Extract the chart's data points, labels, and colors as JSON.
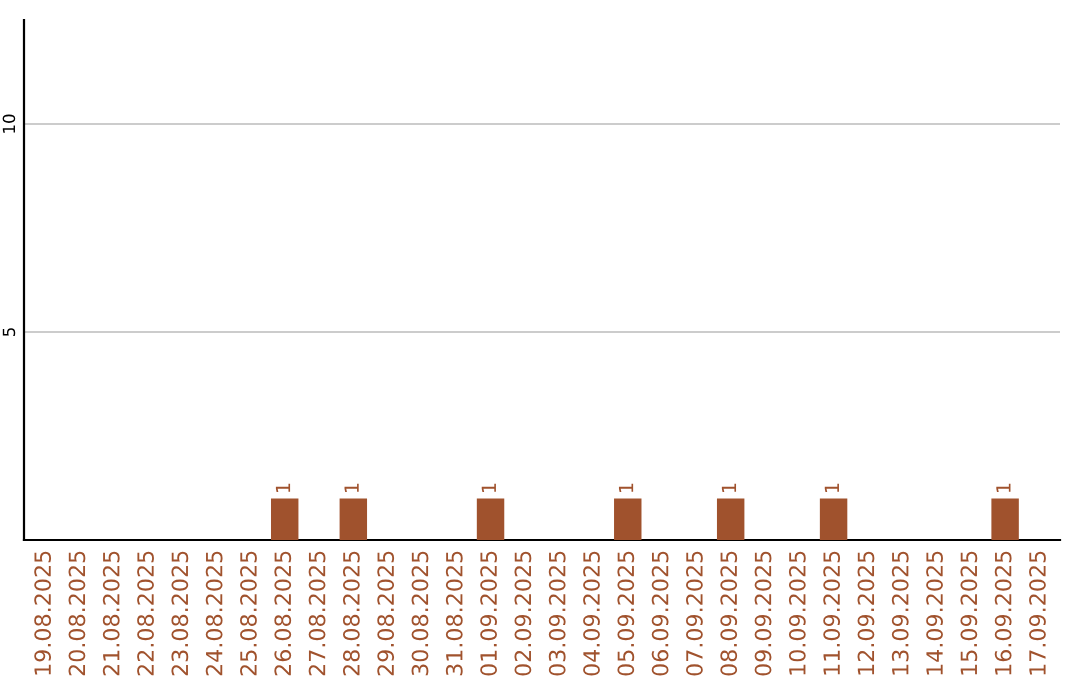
{
  "chart_data": {
    "type": "bar",
    "categories": [
      "19.08.2025",
      "20.08.2025",
      "21.08.2025",
      "22.08.2025",
      "23.08.2025",
      "24.08.2025",
      "25.08.2025",
      "26.08.2025",
      "27.08.2025",
      "28.08.2025",
      "29.08.2025",
      "30.08.2025",
      "31.08.2025",
      "01.09.2025",
      "02.09.2025",
      "03.09.2025",
      "04.09.2025",
      "05.09.2025",
      "06.09.2025",
      "07.09.2025",
      "08.09.2025",
      "09.09.2025",
      "10.09.2025",
      "11.09.2025",
      "12.09.2025",
      "13.09.2025",
      "14.09.2025",
      "15.09.2025",
      "16.09.2025",
      "17.09.2025"
    ],
    "values": [
      0,
      0,
      0,
      0,
      0,
      0,
      0,
      1,
      0,
      1,
      0,
      0,
      0,
      1,
      0,
      0,
      0,
      1,
      0,
      0,
      1,
      0,
      0,
      1,
      0,
      0,
      0,
      0,
      1,
      0
    ],
    "value_labels": [
      null,
      null,
      null,
      null,
      null,
      null,
      null,
      "1",
      null,
      "1",
      null,
      null,
      null,
      "1",
      null,
      null,
      null,
      "1",
      null,
      null,
      "1",
      null,
      null,
      "1",
      null,
      null,
      null,
      null,
      "1",
      null
    ],
    "color": "#a0522d",
    "ylim": [
      0,
      12.5
    ],
    "yticks": [
      5,
      10
    ],
    "grid": "y",
    "legend": false
  }
}
